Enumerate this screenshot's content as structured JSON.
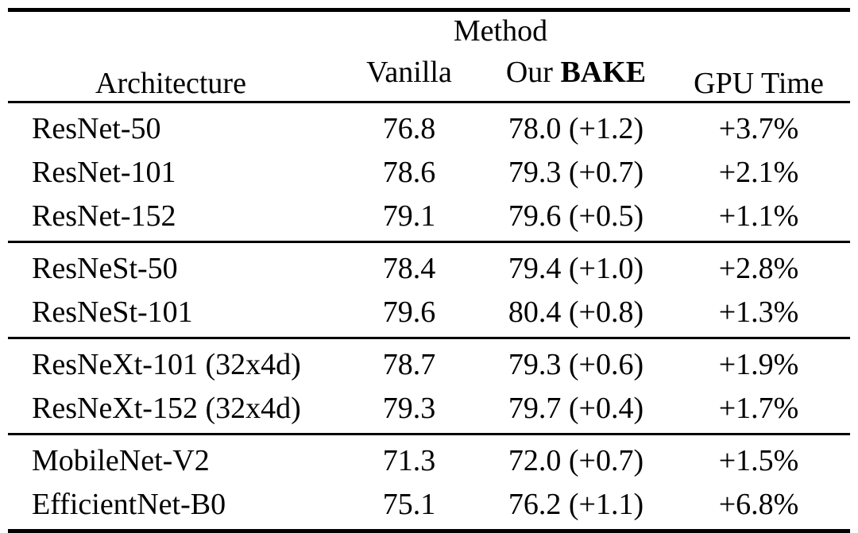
{
  "table": {
    "header": {
      "architecture": "Architecture",
      "method": "Method",
      "vanilla": "Vanilla",
      "bake_prefix": "Our ",
      "bake_bold": "BAKE",
      "gpu_time": "GPU Time"
    },
    "groups": [
      {
        "rows": [
          {
            "architecture": "ResNet-50",
            "vanilla": "76.8",
            "bake": "78.0 (+1.2)",
            "gpu_time": "+3.7%"
          },
          {
            "architecture": "ResNet-101",
            "vanilla": "78.6",
            "bake": "79.3 (+0.7)",
            "gpu_time": "+2.1%"
          },
          {
            "architecture": "ResNet-152",
            "vanilla": "79.1",
            "bake": "79.6 (+0.5)",
            "gpu_time": "+1.1%"
          }
        ]
      },
      {
        "rows": [
          {
            "architecture": "ResNeSt-50",
            "vanilla": "78.4",
            "bake": "79.4 (+1.0)",
            "gpu_time": "+2.8%"
          },
          {
            "architecture": "ResNeSt-101",
            "vanilla": "79.6",
            "bake": "80.4 (+0.8)",
            "gpu_time": "+1.3%"
          }
        ]
      },
      {
        "rows": [
          {
            "architecture": "ResNeXt-101 (32x4d)",
            "vanilla": "78.7",
            "bake": "79.3 (+0.6)",
            "gpu_time": "+1.9%"
          },
          {
            "architecture": "ResNeXt-152 (32x4d)",
            "vanilla": "79.3",
            "bake": "79.7 (+0.4)",
            "gpu_time": "+1.7%"
          }
        ]
      },
      {
        "rows": [
          {
            "architecture": "MobileNet-V2",
            "vanilla": "71.3",
            "bake": "72.0 (+0.7)",
            "gpu_time": "+1.5%"
          },
          {
            "architecture": "EfficientNet-B0",
            "vanilla": "75.1",
            "bake": "76.2 (+1.1)",
            "gpu_time": "+6.8%"
          }
        ]
      }
    ],
    "colors": {
      "text": "#000000",
      "background": "#ffffff",
      "rule": "#000000"
    }
  }
}
